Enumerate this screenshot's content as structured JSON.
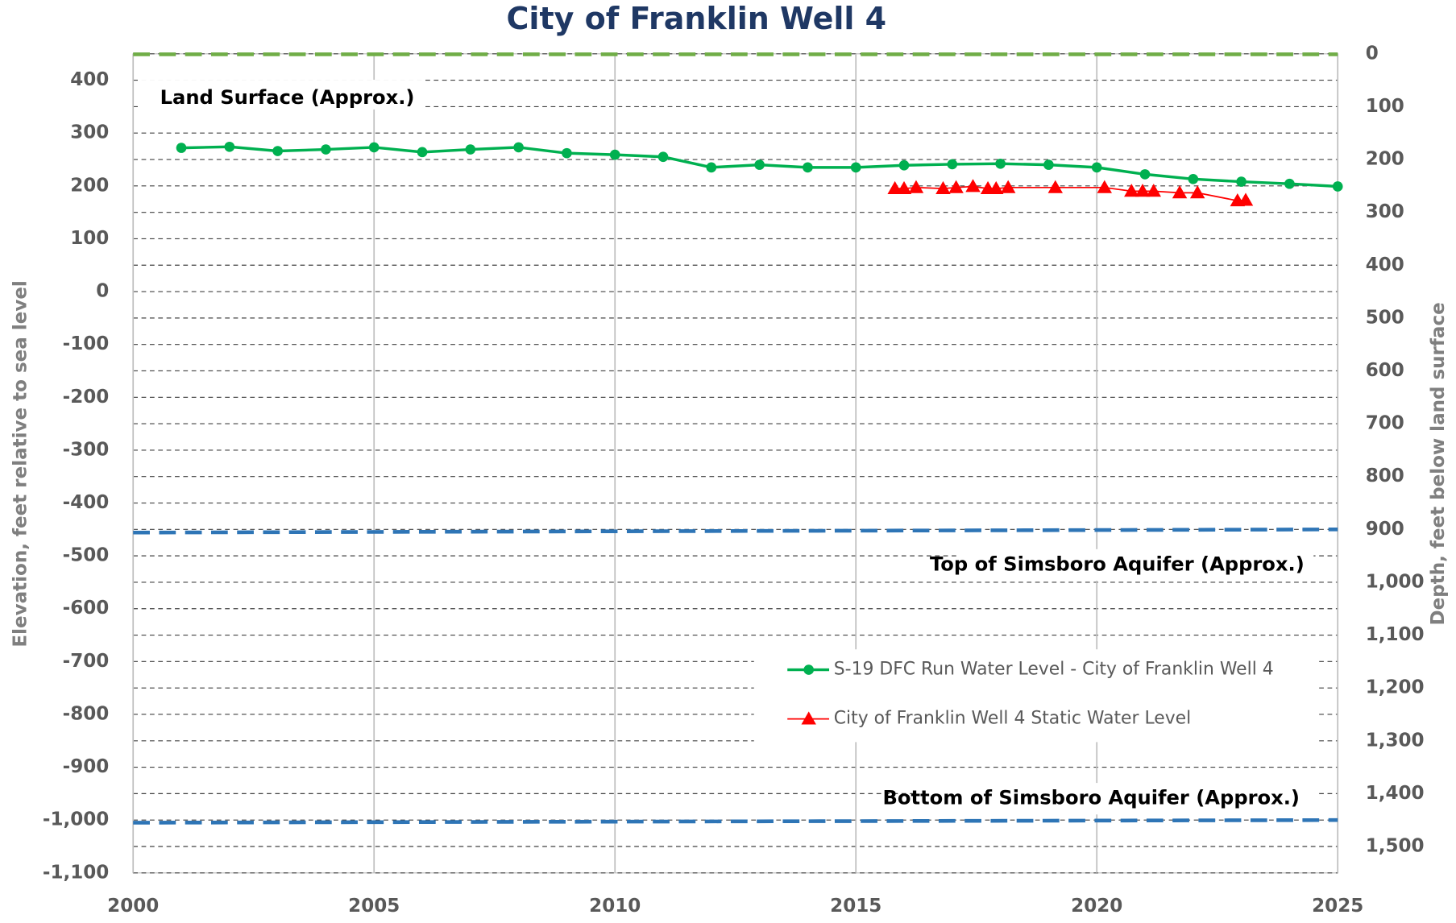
{
  "chart_data": {
    "type": "line",
    "title": "City of Franklin Well 4",
    "y_label": "Elevation, feet relative to sea level",
    "y2_label": "Depth, feet below land surface",
    "xlim": [
      2000,
      2025
    ],
    "xticks": [
      2000,
      2005,
      2010,
      2015,
      2020,
      2025
    ],
    "ylim": [
      -1100,
      450
    ],
    "yticks": [
      {
        "value": -1100,
        "label": "-1,100"
      },
      {
        "value": -1000,
        "label": "-1,000"
      },
      -900,
      -800,
      -700,
      -600,
      -500,
      -400,
      -300,
      -200,
      -100,
      0,
      100,
      200,
      300,
      400
    ],
    "y2lim": [
      1550,
      0
    ],
    "y2ticks": [
      0,
      100,
      200,
      300,
      400,
      500,
      600,
      700,
      800,
      900,
      {
        "value": 1000,
        "label": "1,000"
      },
      {
        "value": 1100,
        "label": "1,100"
      },
      {
        "value": 1200,
        "label": "1,200"
      },
      {
        "value": 1300,
        "label": "1,300"
      },
      {
        "value": 1400,
        "label": "1,400"
      },
      {
        "value": 1500,
        "label": "1,500"
      }
    ],
    "grid": true,
    "series": [
      {
        "name": "S-19 DFC Run Water Level - City of Franklin Well 4",
        "color": "#00b050",
        "marker": "circle",
        "x": [
          2001,
          2002,
          2003,
          2004,
          2005,
          2006,
          2007,
          2008,
          2009,
          2010,
          2011,
          2012,
          2013,
          2014,
          2015,
          2016,
          2017,
          2018,
          2019,
          2020,
          2021,
          2022,
          2023,
          2024,
          2025
        ],
        "values": [
          272,
          274,
          266,
          269,
          273,
          264,
          269,
          273,
          262,
          259,
          255,
          235,
          240,
          235,
          235,
          239,
          241,
          242,
          240,
          235,
          222,
          213,
          208,
          204,
          199
        ]
      },
      {
        "name": "City of Franklin Well 4 Static Water Level",
        "color": "#ff0000",
        "marker": "triangle",
        "x": [
          2015.81,
          2016.0,
          2016.25,
          2016.81,
          2017.08,
          2017.43,
          2017.74,
          2017.91,
          2018.16,
          2019.14,
          2020.16,
          2020.72,
          2020.95,
          2021.18,
          2021.72,
          2022.09,
          2022.92,
          2023.09
        ],
        "values": [
          195,
          195,
          197,
          195,
          197,
          199,
          195,
          195,
          197,
          197,
          197,
          190,
          190,
          190,
          187,
          187,
          172,
          173
        ]
      }
    ],
    "reference_lines": [
      {
        "label": "Land Surface (Approx.)",
        "color": "#70ad47",
        "x": [
          2000,
          2025
        ],
        "values": [
          449,
          449
        ]
      },
      {
        "label": "Top of Simsboro Aquifer (Approx.)",
        "color": "#2e75b6",
        "x": [
          2000,
          2025
        ],
        "values": [
          -456,
          -450
        ]
      },
      {
        "label": "Bottom of Simsboro Aquifer (Approx.)",
        "color": "#2e75b6",
        "x": [
          2000,
          2025
        ],
        "values": [
          -1005,
          -1000
        ]
      }
    ],
    "legend": "lower right"
  }
}
